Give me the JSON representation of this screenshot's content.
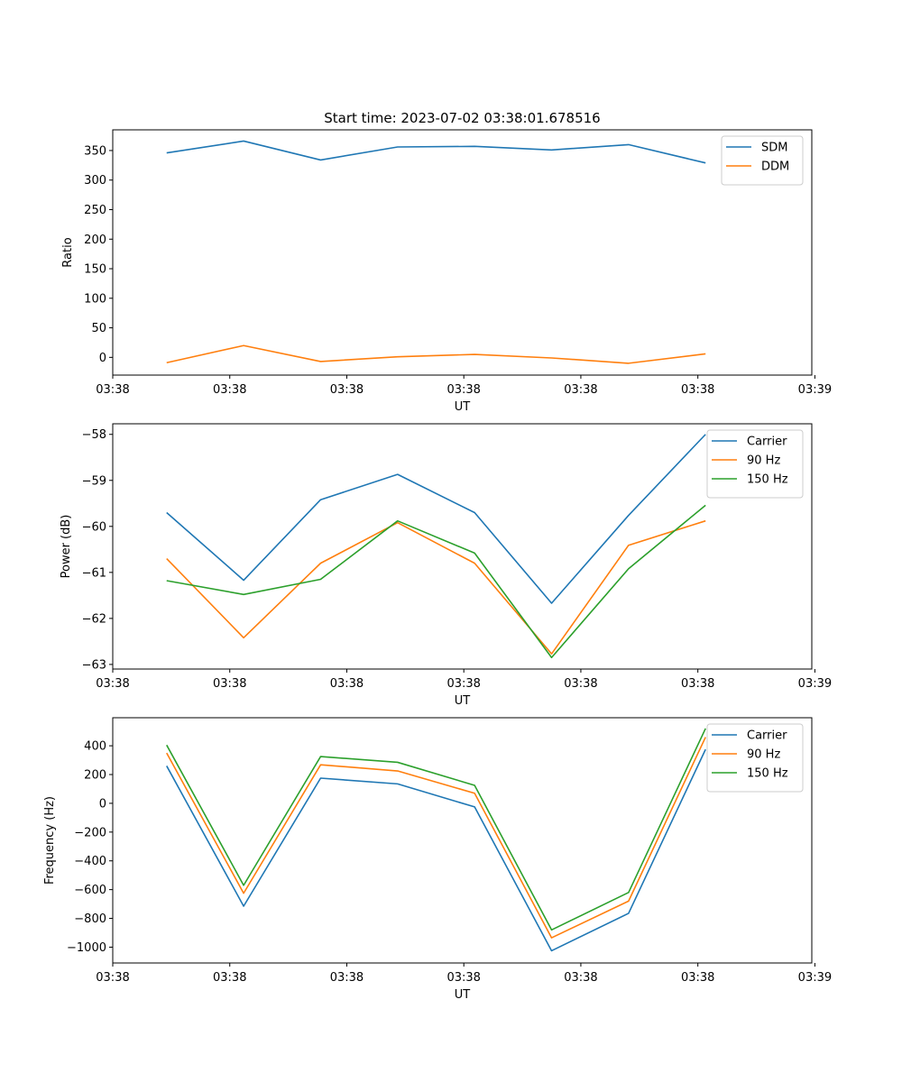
{
  "title": "Start time: 2023-07-02 03:38:01.678516",
  "colors": {
    "c0": "#1f77b4",
    "c1": "#ff7f0e",
    "c2": "#2ca02c"
  },
  "chart_data": [
    {
      "type": "line",
      "title": "Start time: 2023-07-02 03:38:01.678516",
      "xlabel": "UT",
      "ylabel": "Ratio",
      "x": [
        1,
        2,
        3,
        4,
        5,
        6,
        7,
        8
      ],
      "xlim": [
        0.3,
        9.38
      ],
      "xticks": [
        0.3,
        1.82,
        3.34,
        4.86,
        6.38,
        7.9,
        9.42
      ],
      "xtick_labels": [
        "03:38",
        "03:38",
        "03:38",
        "03:38",
        "03:38",
        "03:38",
        "03:39"
      ],
      "ylim": [
        -30,
        385
      ],
      "yticks": [
        0,
        50,
        100,
        150,
        200,
        250,
        300,
        350
      ],
      "ytick_labels": [
        "0",
        "50",
        "100",
        "150",
        "200",
        "250",
        "300",
        "350"
      ],
      "legend": "top-right",
      "series": [
        {
          "name": "SDM",
          "color": "#1f77b4",
          "values": [
            346,
            366,
            334,
            356,
            357,
            351,
            360,
            329
          ]
        },
        {
          "name": "DDM",
          "color": "#ff7f0e",
          "values": [
            -9,
            20,
            -7,
            1,
            5,
            -1,
            -10,
            6
          ]
        }
      ]
    },
    {
      "type": "line",
      "title": "",
      "xlabel": "UT",
      "ylabel": "Power (dB)",
      "x": [
        1,
        2,
        3,
        4,
        5,
        6,
        7,
        8
      ],
      "xlim": [
        0.3,
        9.38
      ],
      "xticks": [
        0.3,
        1.82,
        3.34,
        4.86,
        6.38,
        7.9,
        9.42
      ],
      "xtick_labels": [
        "03:38",
        "03:38",
        "03:38",
        "03:38",
        "03:38",
        "03:38",
        "03:39"
      ],
      "ylim": [
        -63.1,
        -57.77
      ],
      "yticks": [
        -63,
        -62,
        -61,
        -60,
        -59,
        -58
      ],
      "ytick_labels": [
        "−63",
        "−62",
        "−61",
        "−60",
        "−59",
        "−58"
      ],
      "legend": "top-right",
      "series": [
        {
          "name": "Carrier",
          "color": "#1f77b4",
          "values": [
            -59.7,
            -61.17,
            -59.42,
            -58.87,
            -59.7,
            -61.67,
            -59.76,
            -58.0
          ]
        },
        {
          "name": "90 Hz",
          "color": "#ff7f0e",
          "values": [
            -60.7,
            -62.42,
            -60.8,
            -59.92,
            -60.8,
            -62.77,
            -60.41,
            -59.88
          ]
        },
        {
          "name": "150 Hz",
          "color": "#2ca02c",
          "values": [
            -61.18,
            -61.48,
            -61.15,
            -59.88,
            -60.58,
            -62.85,
            -60.92,
            -59.54
          ]
        }
      ]
    },
    {
      "type": "line",
      "title": "",
      "xlabel": "UT",
      "ylabel": "Frequency (Hz)",
      "x": [
        1,
        2,
        3,
        4,
        5,
        6,
        7,
        8
      ],
      "xlim": [
        0.3,
        9.38
      ],
      "xticks": [
        0.3,
        1.82,
        3.34,
        4.86,
        6.38,
        7.9,
        9.42
      ],
      "xtick_labels": [
        "03:38",
        "03:38",
        "03:38",
        "03:38",
        "03:38",
        "03:38",
        "03:39"
      ],
      "ylim": [
        -1110,
        595
      ],
      "yticks": [
        -1000,
        -800,
        -600,
        -400,
        -200,
        0,
        200,
        400
      ],
      "ytick_labels": [
        "−1000",
        "−800",
        "−600",
        "−400",
        "−200",
        "0",
        "200",
        "400"
      ],
      "legend": "top-right",
      "series": [
        {
          "name": "Carrier",
          "color": "#1f77b4",
          "values": [
            260,
            -715,
            175,
            135,
            -25,
            -1025,
            -765,
            375
          ]
        },
        {
          "name": "90 Hz",
          "color": "#ff7f0e",
          "values": [
            350,
            -625,
            268,
            225,
            70,
            -935,
            -680,
            460
          ]
        },
        {
          "name": "150 Hz",
          "color": "#2ca02c",
          "values": [
            405,
            -570,
            325,
            285,
            125,
            -880,
            -620,
            520
          ]
        }
      ]
    }
  ]
}
